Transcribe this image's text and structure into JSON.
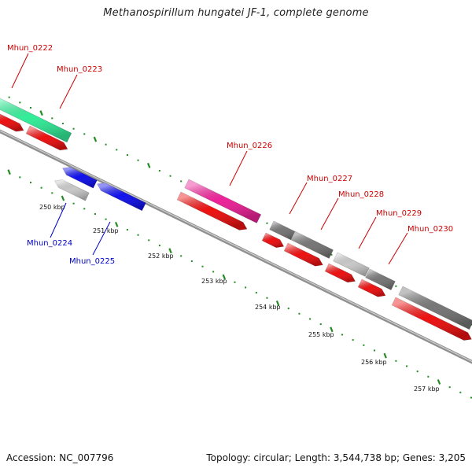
{
  "title": "Methanospirillum hungatei JF-1, complete genome",
  "footer": {
    "accession": "Accession: NC_007796",
    "stats": "Topology: circular; Length: 3,544,738 bp; Genes: 3,205"
  },
  "colors": {
    "ruler_tick": "#228b22",
    "backbone": "#909090",
    "label_red": "#cc0000",
    "label_blue": "#0000cc"
  },
  "kbp_labels": [
    "250 kbp",
    "251 kbp",
    "252 kbp",
    "253 kbp",
    "254 kbp",
    "255 kbp",
    "256 kbp",
    "257 kbp"
  ],
  "genes": [
    {
      "id": "Mhun_0222",
      "color": "#33ee99",
      "label_color": "#cc0000"
    },
    {
      "id": "Mhun_0223",
      "color": "#ee1111",
      "label_color": "#cc0000"
    },
    {
      "id": "Mhun_0224",
      "color": "#c8c8c8",
      "label_color": "#0000cc"
    },
    {
      "id": "Mhun_0225",
      "color": "#1111ee",
      "label_color": "#0000cc"
    },
    {
      "id": "Mhun_0226",
      "color": "#ee2299",
      "label_color": "#cc0000"
    },
    {
      "id": "Mhun_0227",
      "color": "#777777",
      "label_color": "#cc0000"
    },
    {
      "id": "Mhun_0228",
      "color": "#777777",
      "label_color": "#cc0000"
    },
    {
      "id": "Mhun_0229",
      "color": "#c8c8c8",
      "label_color": "#cc0000"
    },
    {
      "id": "Mhun_0230",
      "color": "#777777",
      "label_color": "#cc0000"
    }
  ]
}
